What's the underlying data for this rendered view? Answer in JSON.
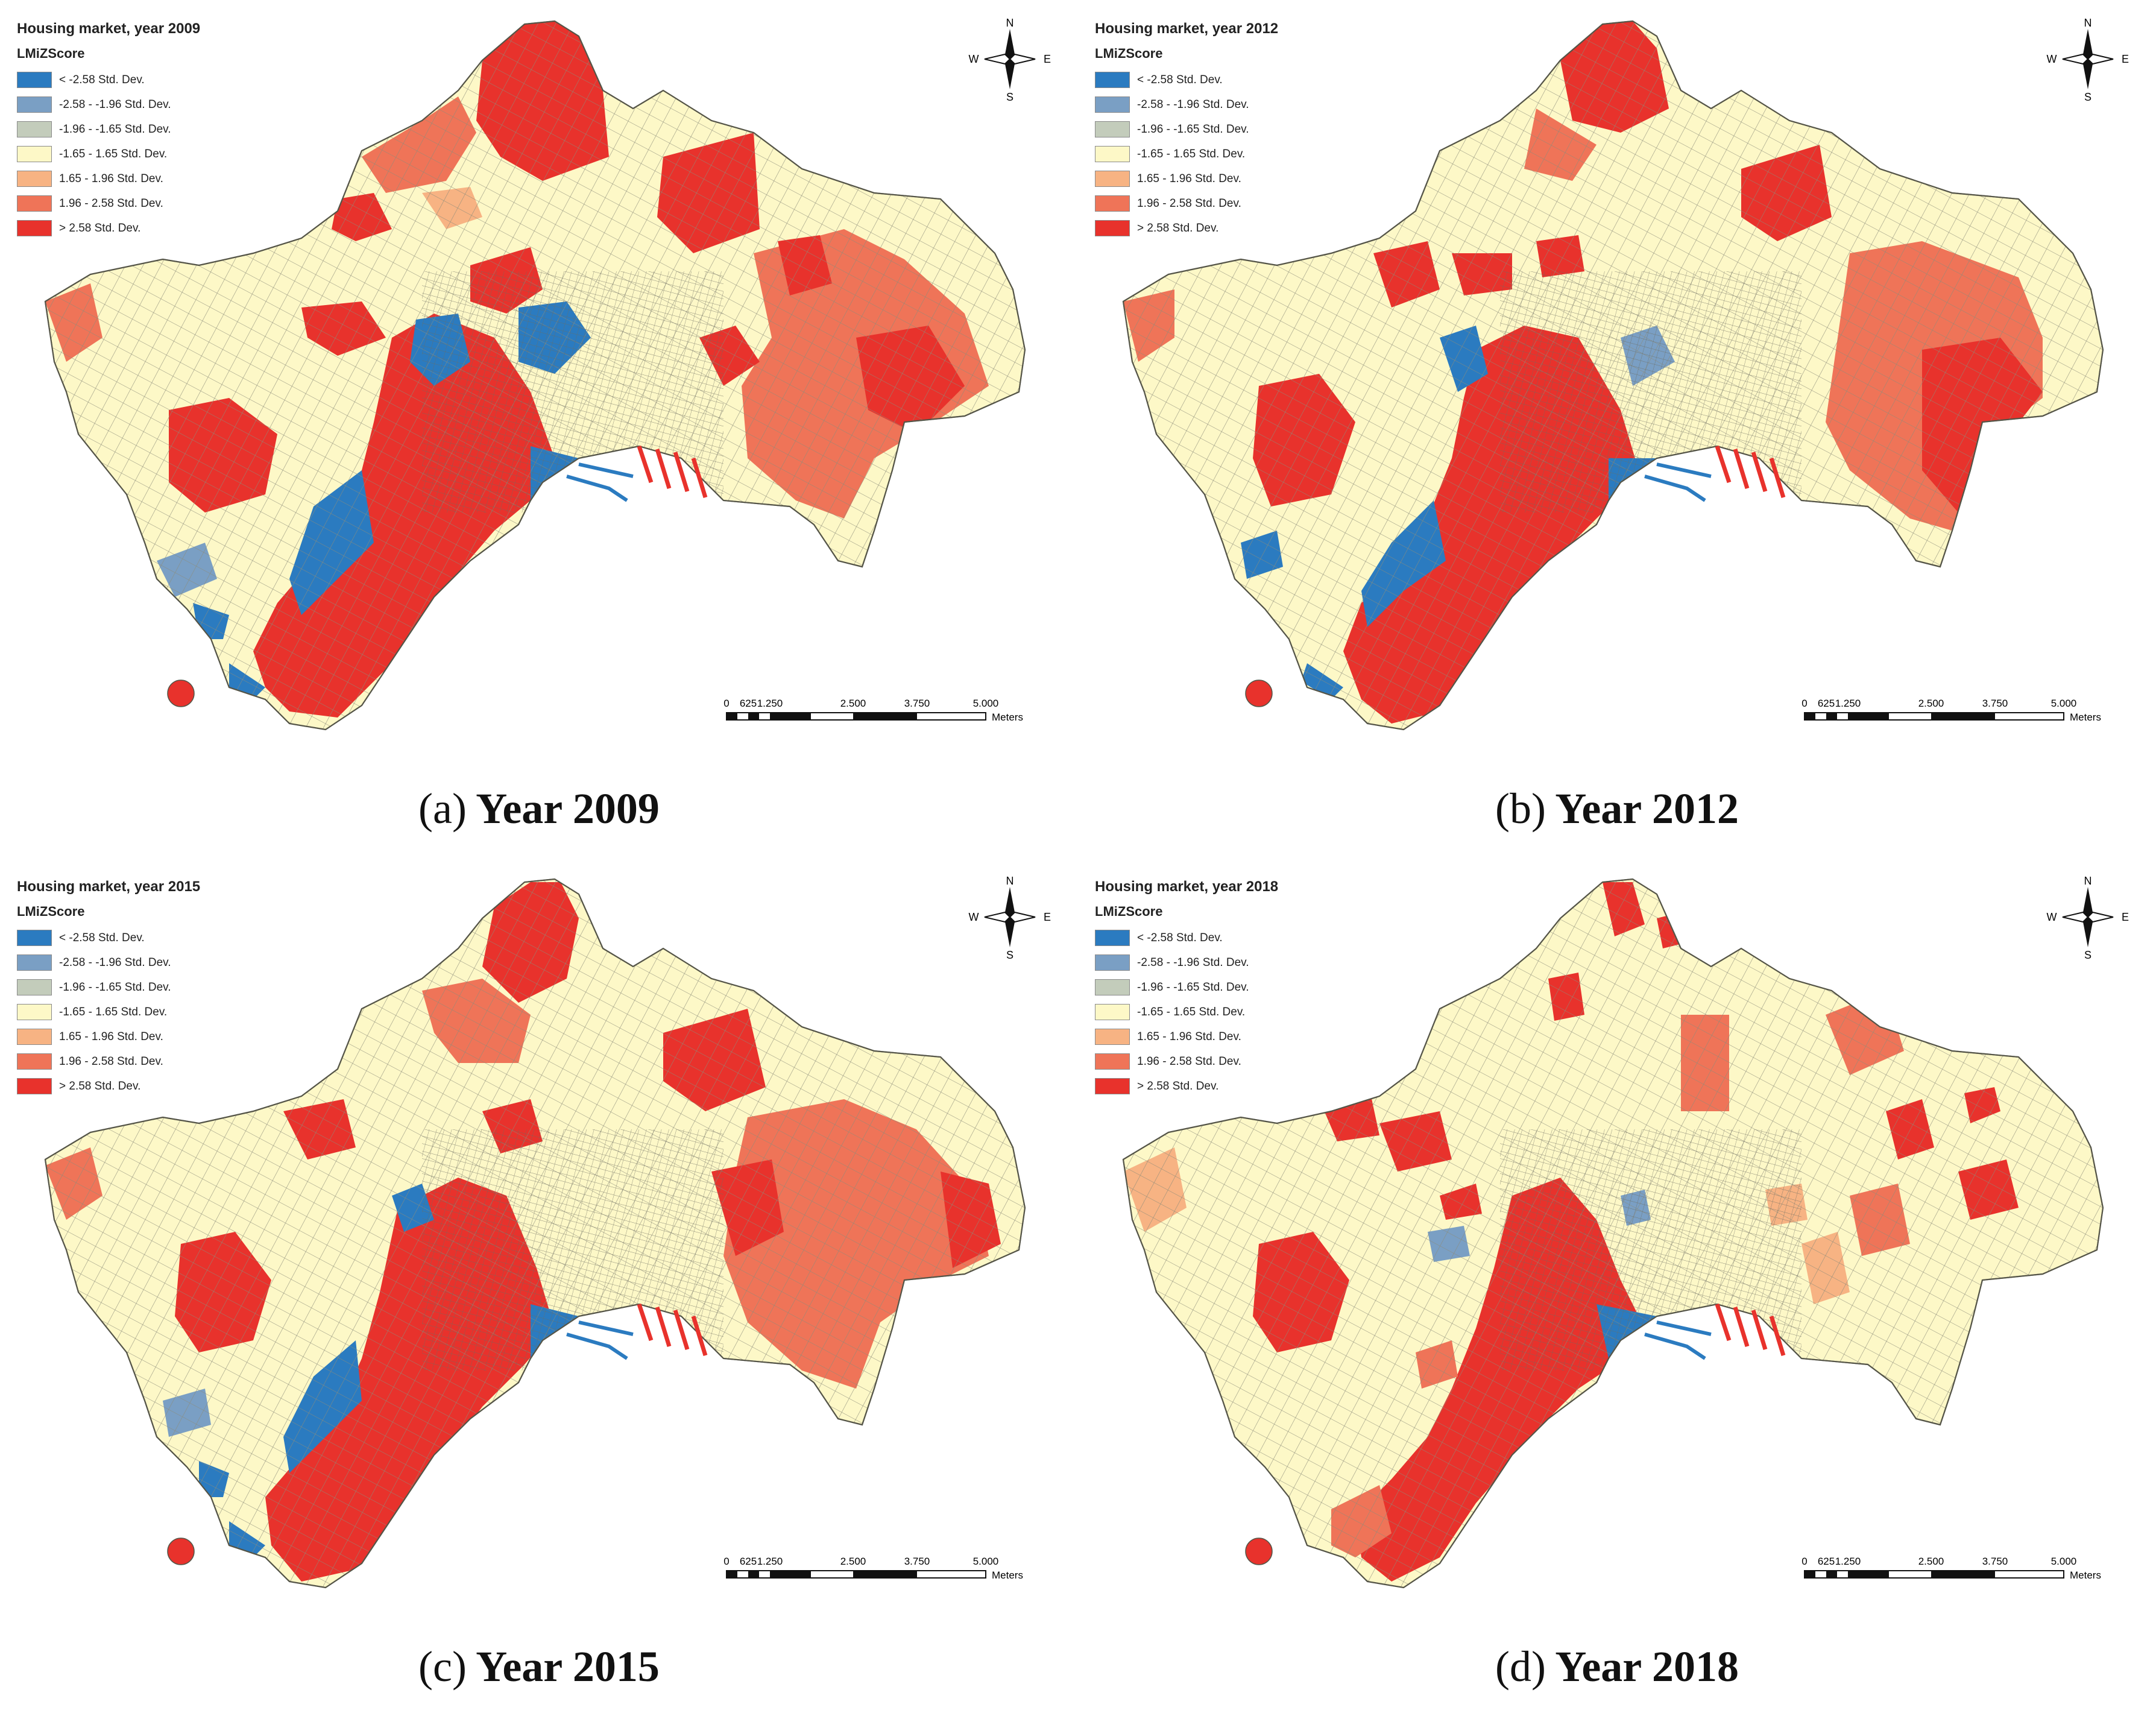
{
  "legend": {
    "heading": "LMiZScore",
    "classes": [
      {
        "label": "< -2.58 Std. Dev.",
        "color": "#2b7bc0"
      },
      {
        "label": "-2.58 - -1.96 Std. Dev.",
        "color": "#7a9fc4"
      },
      {
        "label": "-1.96 - -1.65 Std. Dev.",
        "color": "#c3ccbb"
      },
      {
        "label": "-1.65 - 1.65 Std. Dev.",
        "color": "#fdf8c7"
      },
      {
        "label": "1.65 - 1.96 Std. Dev.",
        "color": "#f7b383"
      },
      {
        "label": "1.96 - 2.58 Std. Dev.",
        "color": "#ef7458"
      },
      {
        "label": "> 2.58 Std. Dev.",
        "color": "#e8322c"
      }
    ]
  },
  "compass": {
    "n": "N",
    "s": "S",
    "e": "E",
    "w": "W"
  },
  "scalebar": {
    "ticks": [
      "0",
      "625",
      "1.250",
      "2.500",
      "3.750",
      "5.000"
    ],
    "unit": "Meters"
  },
  "panels": [
    {
      "title": "Housing market, year 2009",
      "caption_letter": "(a)",
      "caption_text": "Year 2009"
    },
    {
      "title": "Housing market, year 2012",
      "caption_letter": "(b)",
      "caption_text": "Year 2012"
    },
    {
      "title": "Housing market, year 2015",
      "caption_letter": "(c)",
      "caption_text": "Year 2015"
    },
    {
      "title": "Housing market, year 2018",
      "caption_letter": "(d)",
      "caption_text": "Year 2018"
    }
  ]
}
